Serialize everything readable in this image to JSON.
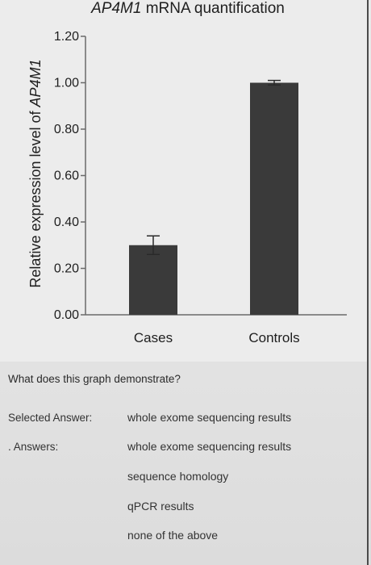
{
  "colors": {
    "bar": "#3a3a3a",
    "axis": "#6a6a6a",
    "panel": "#ececec"
  },
  "chart_data": {
    "type": "bar",
    "title_prefix": "AP4M1",
    "title_suffix": " mRNA quantification",
    "ylabel_prefix": "Relative expression level of ",
    "ylabel_gene": "AP4M1",
    "categories": [
      "Cases",
      "Controls"
    ],
    "values": [
      0.3,
      1.0
    ],
    "error": [
      0.04,
      0.01
    ],
    "ylim": [
      0,
      1.2
    ],
    "yticks": [
      "0.00",
      "0.20",
      "0.40",
      "0.60",
      "0.80",
      "1.00",
      "1.20"
    ],
    "grid": false,
    "legend": "none"
  },
  "quiz": {
    "question": "What does this graph demonstrate?",
    "selected_label": "Selected Answer:",
    "selected_value": "whole exome sequencing results",
    "answers_label": ". Answers:",
    "answers": [
      "whole exome sequencing results",
      "sequence homology",
      "qPCR results",
      "none of the above"
    ]
  }
}
